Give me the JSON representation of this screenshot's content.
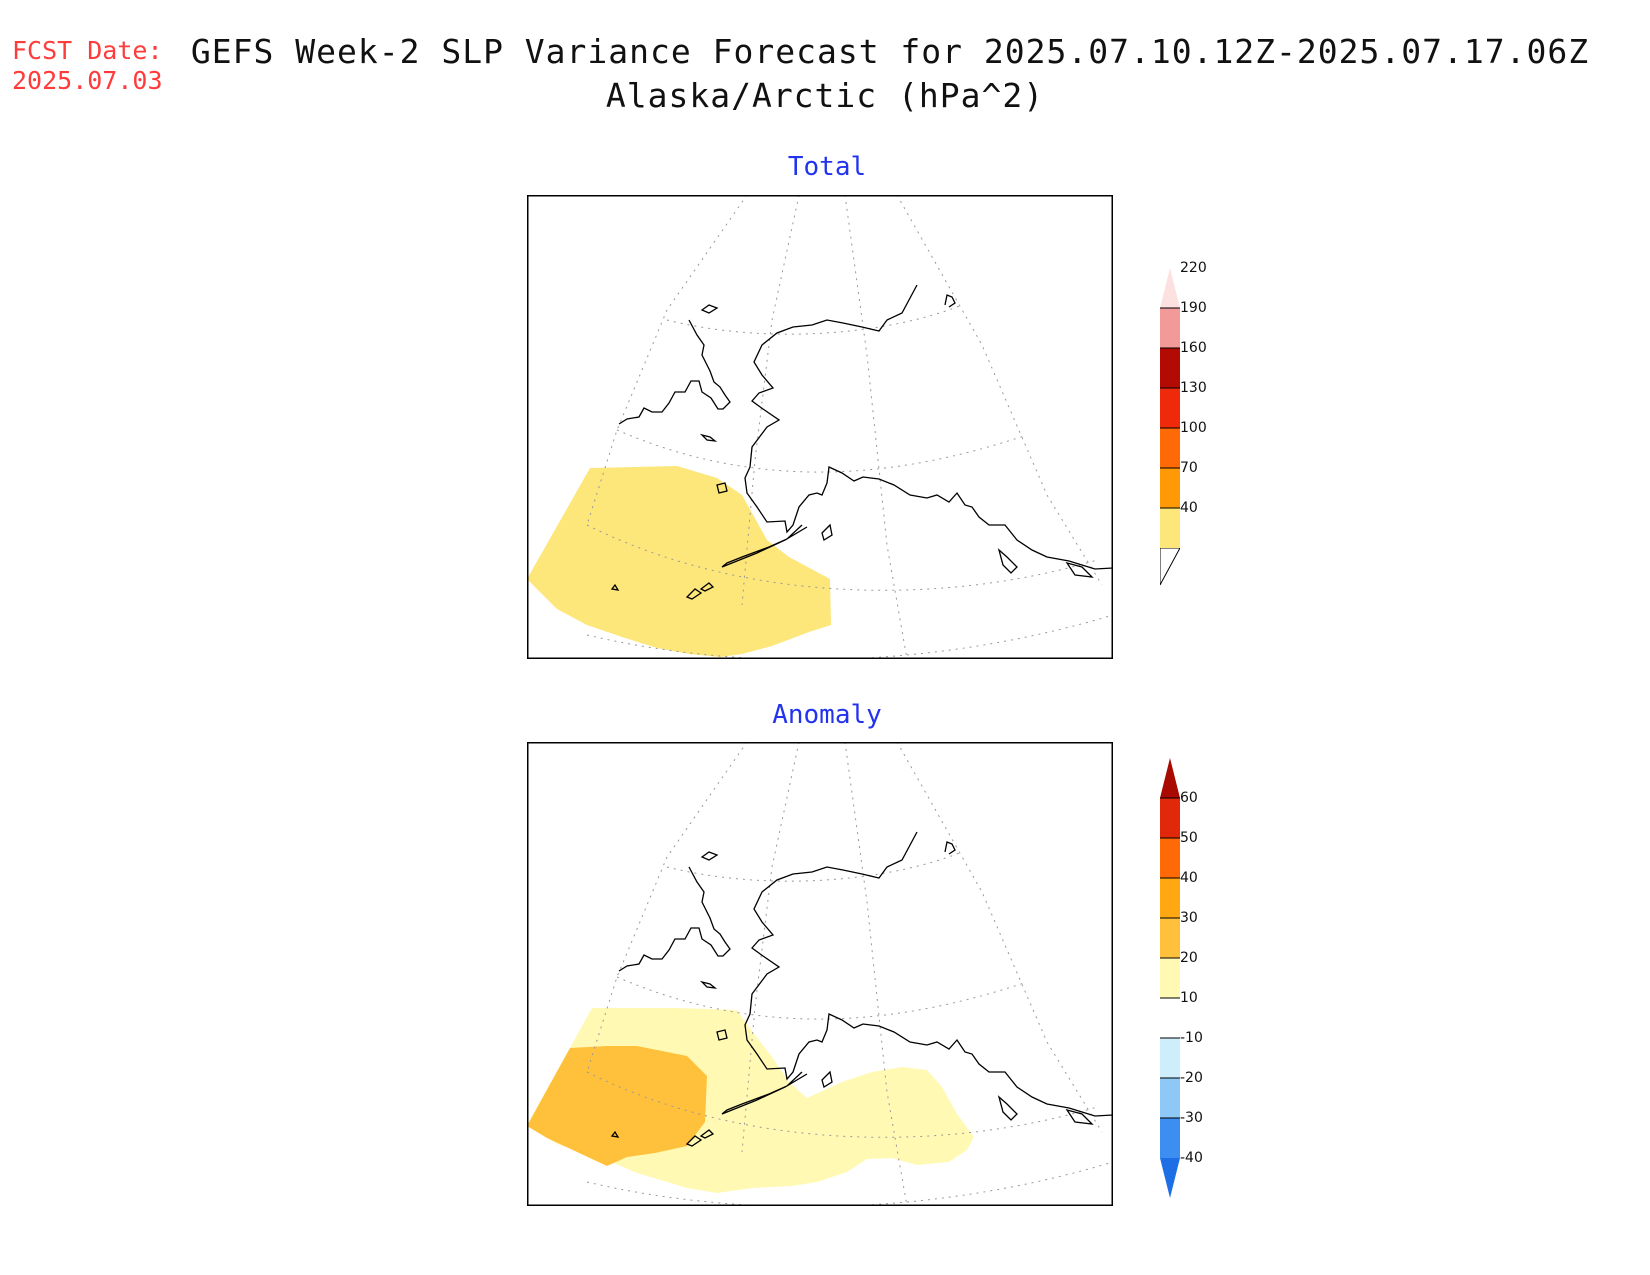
{
  "header": {
    "fcst_label": "FCST Date:",
    "fcst_date": "2025.07.03",
    "title_line1": "GEFS Week-2 SLP Variance Forecast for 2025.07.10.12Z-2025.07.17.06Z",
    "title_line2": "Alaska/Arctic (hPa^2)"
  },
  "panels": [
    {
      "title": "Total",
      "legend": {
        "levels": [
          "40",
          "70",
          "100",
          "130",
          "160",
          "190",
          "220"
        ],
        "colors": [
          "#fde67a",
          "#ffc039",
          "#ff9a06",
          "#ff6a06",
          "#ee2a0a",
          "#b10b04",
          "#f29a9a",
          "#fde1e1"
        ]
      }
    },
    {
      "title": "Anomaly",
      "legend": {
        "levels": [
          "-40",
          "-30",
          "-20",
          "-10",
          "10",
          "20",
          "30",
          "40",
          "50",
          "60"
        ],
        "colors": [
          "#1e6ee6",
          "#3c8ef0",
          "#8ec8f6",
          "#cdeefa",
          "#e8f9fd",
          "#ffffff",
          "#fff9b4",
          "#ffc13c",
          "#ffa812",
          "#ff6a06",
          "#e2280a",
          "#a80a02"
        ]
      }
    }
  ]
}
